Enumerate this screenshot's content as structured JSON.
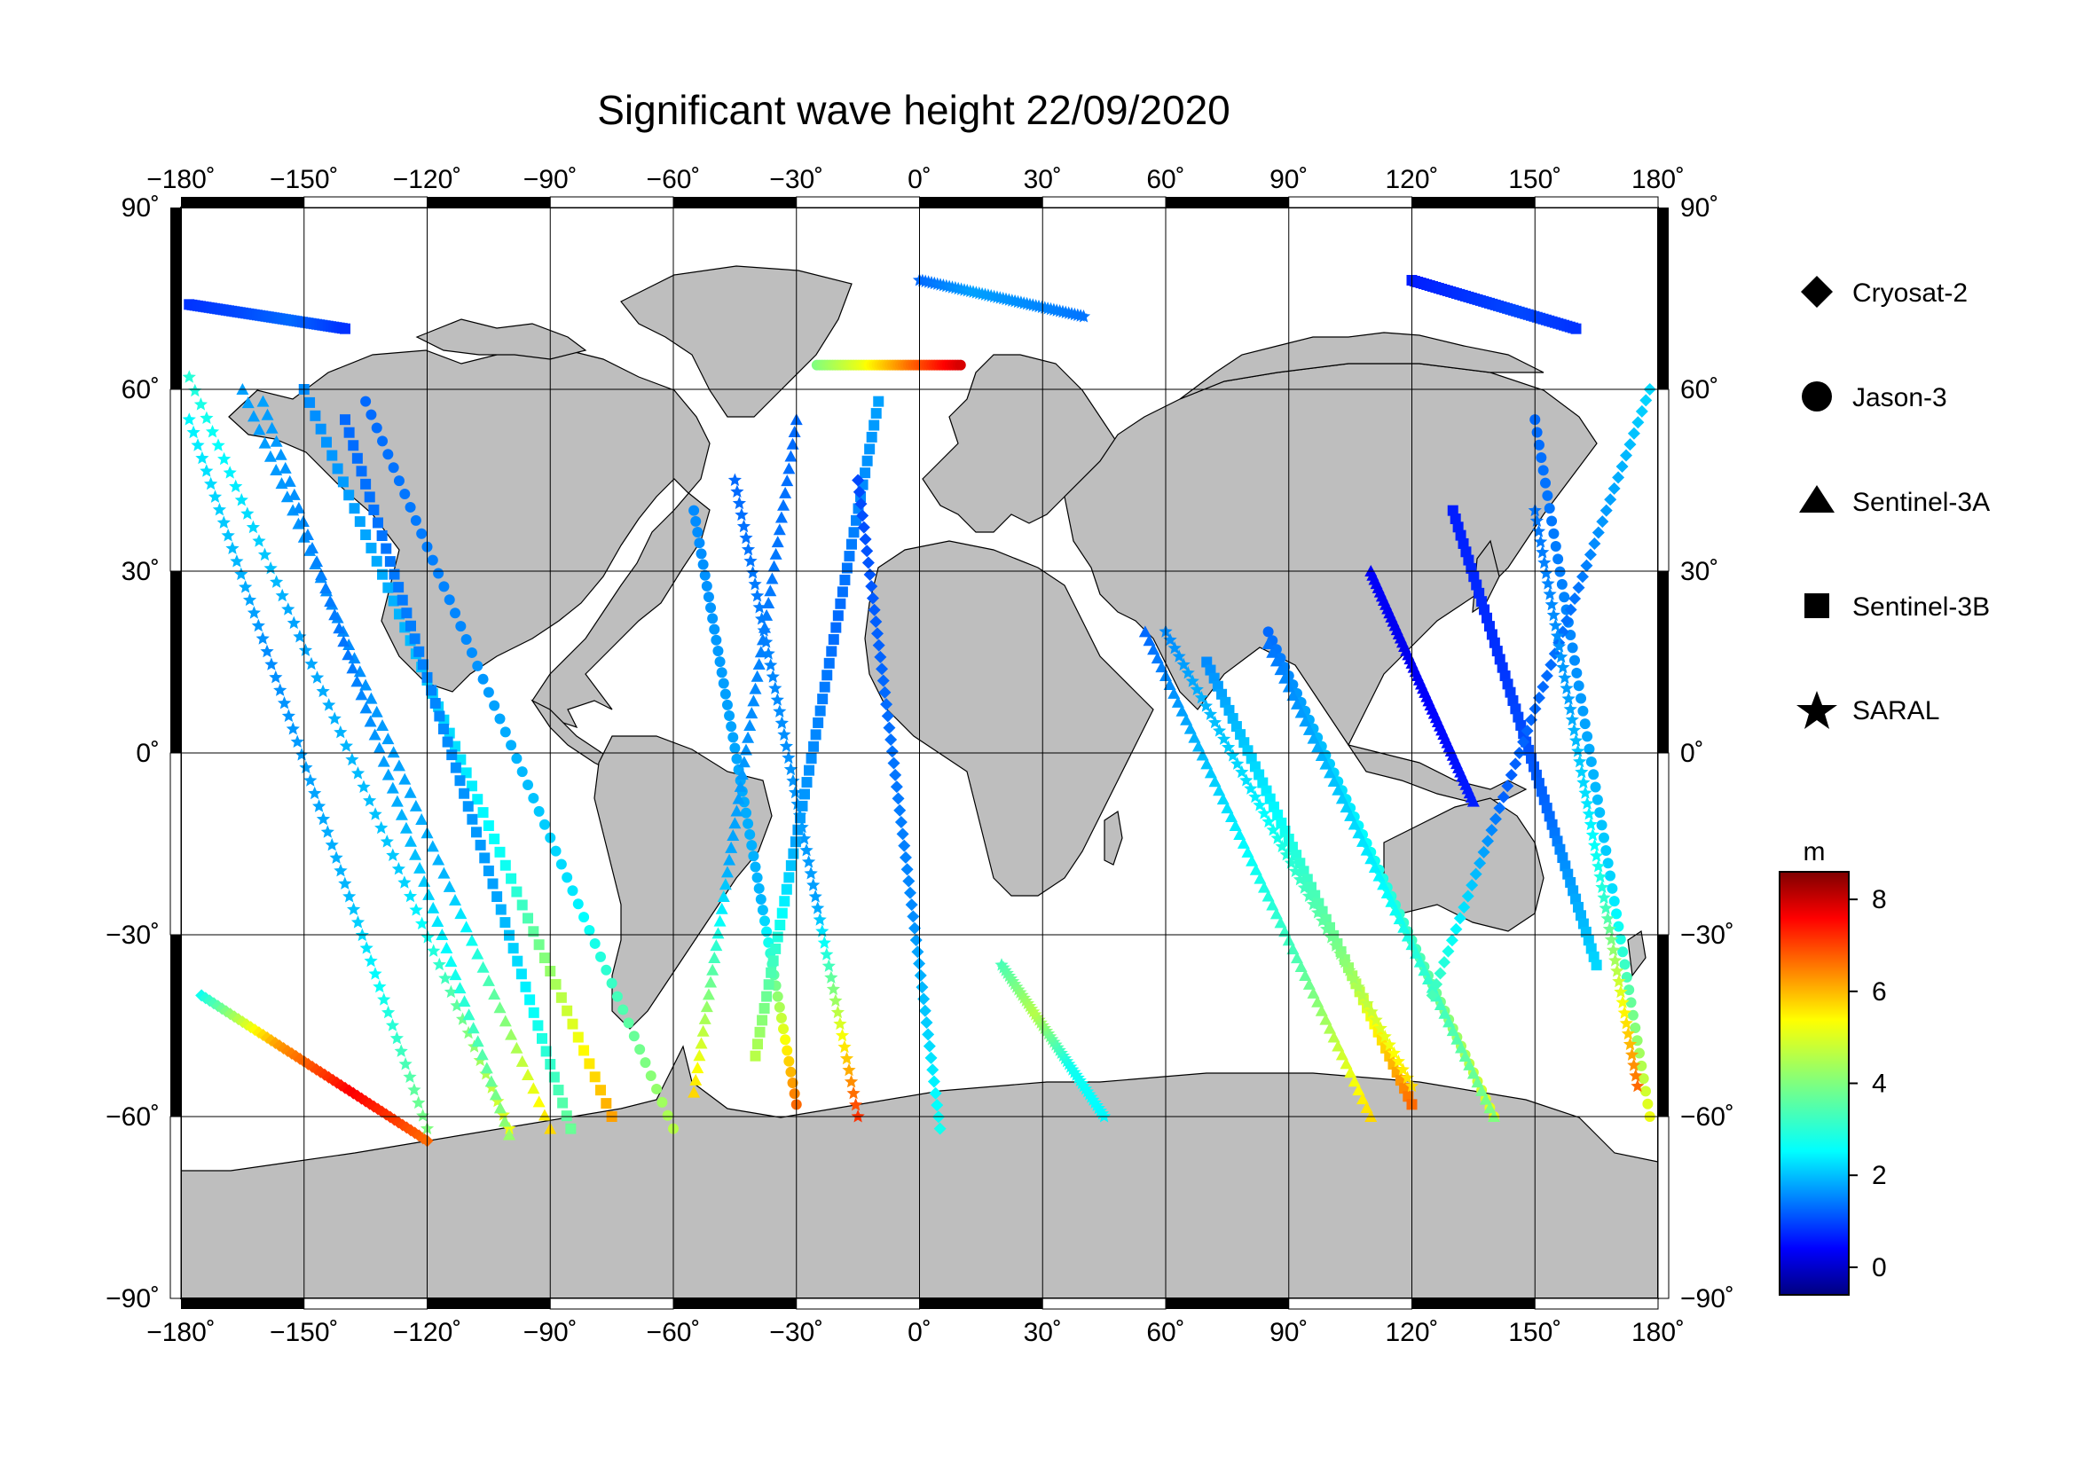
{
  "title": "Significant wave height 22/09/2020",
  "lon_ticks": [
    "−180˚",
    "−150˚",
    "−120˚",
    "−90˚",
    "−60˚",
    "−30˚",
    "0˚",
    "30˚",
    "60˚",
    "90˚",
    "120˚",
    "150˚",
    "180˚"
  ],
  "lat_ticks": [
    "90˚",
    "60˚",
    "30˚",
    "0˚",
    "−30˚",
    "−60˚",
    "−90˚"
  ],
  "legend": [
    {
      "label": "Cryosat-2",
      "symbol": "diamond"
    },
    {
      "label": "Jason-3",
      "symbol": "circle"
    },
    {
      "label": "Sentinel-3A",
      "symbol": "triangle"
    },
    {
      "label": "Sentinel-3B",
      "symbol": "square"
    },
    {
      "label": "SARAL",
      "symbol": "star"
    }
  ],
  "colorbar": {
    "unit": "m",
    "tick_labels": [
      "8",
      "6",
      "4",
      "2",
      "0"
    ],
    "range": [
      -0.6,
      8.6
    ],
    "colormap": "jet"
  },
  "colors": {
    "land": "#bebebe",
    "ocean": "#ffffff",
    "grid": "#000000",
    "frame": "#000000"
  },
  "map_data": {
    "projection": "equirectangular",
    "lon_range": [
      -180,
      180
    ],
    "lat_range": [
      -90,
      90
    ],
    "tracks": [
      {
        "satellite": "SARAL",
        "lon": [
          -178,
          -100
        ],
        "lat": [
          62,
          -62
        ],
        "swh": [
          3.2,
          2.0,
          2.4,
          5.0
        ]
      },
      {
        "satellite": "Sentinel-3A",
        "lon": [
          -165,
          -90
        ],
        "lat": [
          60,
          -62
        ],
        "swh": [
          2.0,
          1.8,
          2.2,
          5.5
        ]
      },
      {
        "satellite": "Sentinel-3B",
        "lon": [
          -150,
          -75
        ],
        "lat": [
          60,
          -60
        ],
        "swh": [
          1.8,
          2.2,
          3.0,
          6.0
        ]
      },
      {
        "satellite": "Jason-3",
        "lon": [
          -135,
          -60
        ],
        "lat": [
          58,
          -62
        ],
        "swh": [
          1.5,
          1.8,
          2.6,
          4.5
        ]
      },
      {
        "satellite": "Cryosat-2",
        "lon": [
          -175,
          -120
        ],
        "lat": [
          -40,
          -64
        ],
        "swh": [
          3.0,
          6.0,
          7.5,
          6.5
        ]
      },
      {
        "satellite": "SARAL",
        "lon": [
          -120,
          -178
        ],
        "lat": [
          -62,
          55
        ],
        "swh": [
          4.0,
          2.2,
          1.8,
          2.8
        ]
      },
      {
        "satellite": "Sentinel-3A",
        "lon": [
          -100,
          -160
        ],
        "lat": [
          -63,
          58
        ],
        "swh": [
          4.2,
          2.4,
          1.6,
          2.0
        ]
      },
      {
        "satellite": "Sentinel-3B",
        "lon": [
          -85,
          -140
        ],
        "lat": [
          -62,
          55
        ],
        "swh": [
          3.8,
          2.0,
          1.7,
          1.5
        ]
      },
      {
        "satellite": "Jason-3",
        "lon": [
          -55,
          -30
        ],
        "lat": [
          40,
          -58
        ],
        "swh": [
          1.8,
          2.0,
          2.2,
          6.5
        ]
      },
      {
        "satellite": "SARAL",
        "lon": [
          -45,
          -15
        ],
        "lat": [
          45,
          -60
        ],
        "swh": [
          1.5,
          1.8,
          2.0,
          7.0
        ]
      },
      {
        "satellite": "Sentinel-3A",
        "lon": [
          -30,
          -55
        ],
        "lat": [
          55,
          -56
        ],
        "swh": [
          1.5,
          1.7,
          2.1,
          5.5
        ]
      },
      {
        "satellite": "Sentinel-3B",
        "lon": [
          -10,
          -40
        ],
        "lat": [
          58,
          -50
        ],
        "swh": [
          2.0,
          1.5,
          2.0,
          4.5
        ]
      },
      {
        "satellite": "Jason-3",
        "lon": [
          -25,
          10
        ],
        "lat": [
          64,
          64
        ],
        "swh": [
          4.0,
          5.0,
          6.5,
          7.8
        ]
      },
      {
        "satellite": "Cryosat-2",
        "lon": [
          5,
          -15
        ],
        "lat": [
          -62,
          45
        ],
        "swh": [
          3.0,
          1.8,
          1.5,
          1.2
        ]
      },
      {
        "satellite": "SARAL",
        "lon": [
          20,
          45
        ],
        "lat": [
          -35,
          -60
        ],
        "swh": [
          3.5,
          4.5,
          3.0,
          2.8
        ]
      },
      {
        "satellite": "Sentinel-3A",
        "lon": [
          55,
          110
        ],
        "lat": [
          20,
          -60
        ],
        "swh": [
          1.5,
          2.5,
          3.5,
          5.5
        ]
      },
      {
        "satellite": "Sentinel-3B",
        "lon": [
          70,
          120
        ],
        "lat": [
          15,
          -58
        ],
        "swh": [
          1.8,
          2.8,
          4.0,
          6.5
        ]
      },
      {
        "satellite": "Jason-3",
        "lon": [
          85,
          140
        ],
        "lat": [
          20,
          -60
        ],
        "swh": [
          1.5,
          2.6,
          3.5,
          5.0
        ]
      },
      {
        "satellite": "SARAL",
        "lon": [
          120,
          60
        ],
        "lat": [
          -55,
          20
        ],
        "swh": [
          5.5,
          3.8,
          2.6,
          1.8
        ]
      },
      {
        "satellite": "Sentinel-3A",
        "lon": [
          140,
          85
        ],
        "lat": [
          -60,
          18
        ],
        "swh": [
          4.0,
          3.2,
          2.4,
          1.6
        ]
      },
      {
        "satellite": "Sentinel-3B",
        "lon": [
          130,
          165
        ],
        "lat": [
          40,
          -35
        ],
        "swh": [
          0.8,
          1.0,
          1.5,
          2.5
        ]
      },
      {
        "satellite": "Jason-3",
        "lon": [
          150,
          178
        ],
        "lat": [
          55,
          -60
        ],
        "swh": [
          1.5,
          1.8,
          2.5,
          5.0
        ]
      },
      {
        "satellite": "Cryosat-2",
        "lon": [
          178,
          125
        ],
        "lat": [
          60,
          -40
        ],
        "swh": [
          2.5,
          1.6,
          1.4,
          3.5
        ]
      },
      {
        "satellite": "SARAL",
        "lon": [
          175,
          150
        ],
        "lat": [
          -55,
          40
        ],
        "swh": [
          6.5,
          3.2,
          2.0,
          1.6
        ]
      },
      {
        "satellite": "Sentinel-3A",
        "lon": [
          110,
          135
        ],
        "lat": [
          30,
          -8
        ],
        "swh": [
          0.5,
          0.4,
          0.6,
          0.8
        ]
      },
      {
        "satellite": "Sentinel-3B",
        "lon": [
          -178,
          -140
        ],
        "lat": [
          74,
          70
        ],
        "swh": [
          1.0,
          1.2,
          1.5,
          1.0
        ]
      },
      {
        "satellite": "Sentinel-3B",
        "lon": [
          120,
          160
        ],
        "lat": [
          78,
          70
        ],
        "swh": [
          0.8,
          1.0,
          1.2,
          1.0
        ]
      },
      {
        "satellite": "SARAL",
        "lon": [
          0,
          40
        ],
        "lat": [
          78,
          72
        ],
        "swh": [
          1.5,
          2.0,
          1.8,
          1.6
        ]
      }
    ]
  }
}
